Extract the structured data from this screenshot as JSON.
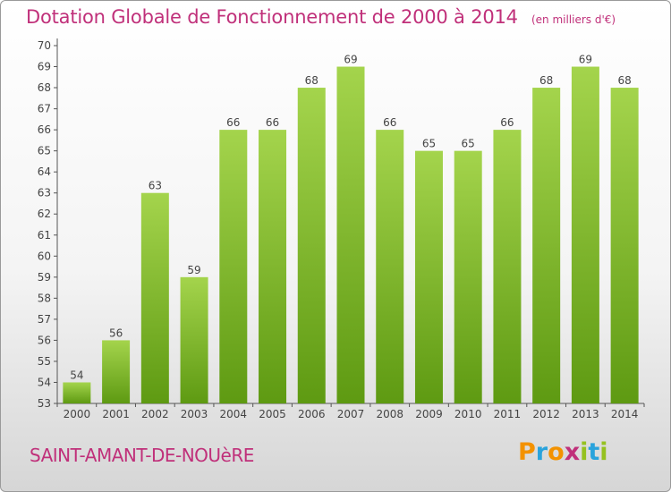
{
  "title": "Dotation Globale de Fonctionnement de 2000 à 2014",
  "unit_label": "(en milliers d'€)",
  "commune": "SAINT-AMANT-DE-NOUèRE",
  "logo": {
    "letters": [
      "P",
      "r",
      "o",
      "x",
      "i",
      "t",
      "i"
    ],
    "colors": [
      "#f39200",
      "#2aa3dc",
      "#f39200",
      "#c0307a",
      "#95c11f",
      "#2aa3dc",
      "#95c11f"
    ]
  },
  "colors": {
    "bar_top": "#a4d44c",
    "bar_bottom": "#5e9a12",
    "title": "#c0307a"
  },
  "chart_data": {
    "type": "bar",
    "categories": [
      "2000",
      "2001",
      "2002",
      "2003",
      "2004",
      "2005",
      "2006",
      "2007",
      "2008",
      "2009",
      "2010",
      "2011",
      "2012",
      "2013",
      "2014"
    ],
    "values": [
      54,
      56,
      63,
      59,
      66,
      66,
      68,
      69,
      66,
      65,
      65,
      66,
      68,
      69,
      68
    ],
    "ylim": [
      53,
      70
    ],
    "yticks": [
      53,
      54,
      55,
      56,
      57,
      58,
      59,
      60,
      61,
      62,
      63,
      64,
      65,
      66,
      67,
      68,
      69,
      70
    ],
    "grid": false,
    "legend": "none"
  }
}
